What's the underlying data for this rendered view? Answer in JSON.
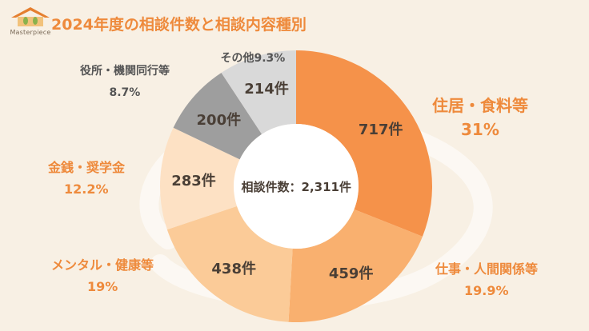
{
  "logo": {
    "text": "Masterpiece",
    "colors": {
      "roof": "#e57f2f",
      "wall": "#f2c27b",
      "leaf": "#8ab24d"
    }
  },
  "chart_data": {
    "type": "pie",
    "title": "2024年度の相談件数と相談内容種別",
    "center_label": "相談件数：2,311件",
    "slices": [
      {
        "name": "住居・食料等",
        "count_label": "717件",
        "value": 717,
        "percent_label": "31%",
        "color": "#f5924a",
        "label_color": "#ee8a3c"
      },
      {
        "name": "仕事・人間関係等",
        "count_label": "459件",
        "value": 459,
        "percent_label": "19.9%",
        "color": "#f9b06f",
        "label_color": "#ee8a3c"
      },
      {
        "name": "メンタル・健康等",
        "count_label": "438件",
        "value": 438,
        "percent_label": "19%",
        "color": "#fbcb98",
        "label_color": "#ee8a3c"
      },
      {
        "name": "金銭・奨学金",
        "count_label": "283件",
        "value": 283,
        "percent_label": "12.2%",
        "color": "#fde1c4",
        "label_color": "#ee8a3c"
      },
      {
        "name": "役所・機関同行等",
        "count_label": "200件",
        "value": 200,
        "percent_label": "8.7%",
        "color": "#9e9e9e",
        "label_color": "#555555"
      },
      {
        "name": "その他",
        "count_label": "214件",
        "value": 214,
        "percent_label": "9.3%",
        "color": "#d9d9d9",
        "label_color": "#555555"
      }
    ]
  }
}
